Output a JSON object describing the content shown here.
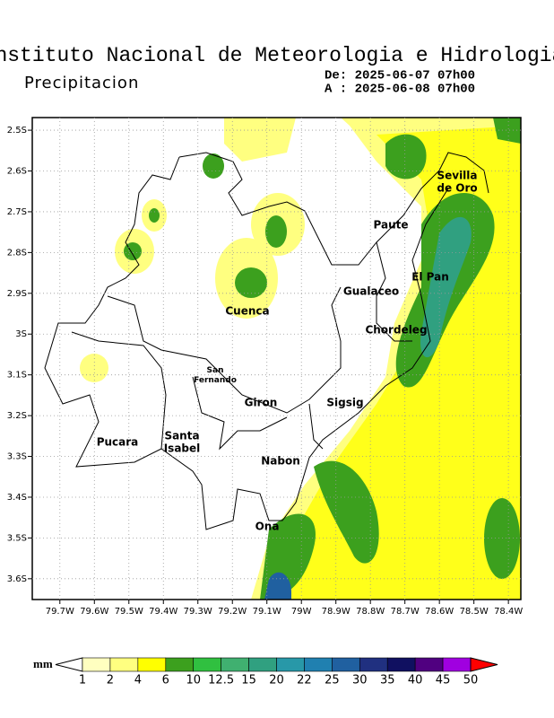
{
  "header": {
    "title": "Instituto Nacional de Meteorologia e Hidrologia",
    "subtitle": "Precipitacion",
    "from": "De: 2025-06-07 07h00",
    "to": "A : 2025-06-08 07h00"
  },
  "map": {
    "xlim": [
      -79.78,
      -78.364
    ],
    "ylim": [
      -3.651,
      -2.469
    ],
    "grid": true,
    "xticks": [
      {
        "value": -79.7,
        "label": "79.7W"
      },
      {
        "value": -79.6,
        "label": "79.6W"
      },
      {
        "value": -79.5,
        "label": "79.5W"
      },
      {
        "value": -79.4,
        "label": "79.4W"
      },
      {
        "value": -79.3,
        "label": "79.3W"
      },
      {
        "value": -79.2,
        "label": "79.2W"
      },
      {
        "value": -79.1,
        "label": "79.1W"
      },
      {
        "value": -79.0,
        "label": "79W"
      },
      {
        "value": -78.9,
        "label": "78.9W"
      },
      {
        "value": -78.8,
        "label": "78.8W"
      },
      {
        "value": -78.7,
        "label": "78.7W"
      },
      {
        "value": -78.6,
        "label": "78.6W"
      },
      {
        "value": -78.5,
        "label": "78.5W"
      },
      {
        "value": -78.4,
        "label": "78.4W"
      }
    ],
    "yticks": [
      {
        "value": -2.5,
        "label": "2.5S"
      },
      {
        "value": -2.6,
        "label": "2.6S"
      },
      {
        "value": -2.7,
        "label": "2.7S"
      },
      {
        "value": -2.8,
        "label": "2.8S"
      },
      {
        "value": -2.9,
        "label": "2.9S"
      },
      {
        "value": -3.0,
        "label": "3S"
      },
      {
        "value": -3.1,
        "label": "3.1S"
      },
      {
        "value": -3.2,
        "label": "3.2S"
      },
      {
        "value": -3.3,
        "label": "3.3S"
      },
      {
        "value": -3.4,
        "label": "3.4S"
      },
      {
        "value": -3.5,
        "label": "3.5S"
      },
      {
        "value": -3.6,
        "label": "3.6S"
      }
    ],
    "places": [
      [
        "Sevilla",
        "de Oro"
      ],
      [
        "Paute"
      ],
      [
        "El Pan"
      ],
      [
        "Gualaceo"
      ],
      [
        "Cuenca"
      ],
      [
        "Chordeleg"
      ],
      [
        "San",
        "Fernando"
      ],
      [
        "Giron"
      ],
      [
        "Sigsig"
      ],
      [
        "Pucara"
      ],
      [
        "Santa",
        "Isabel"
      ],
      [
        "Nabon"
      ],
      [
        "Ona"
      ]
    ]
  },
  "colorbar": {
    "unit": "mm",
    "levels": [
      1,
      2,
      4,
      6,
      10,
      12.5,
      15,
      20,
      22,
      25,
      30,
      35,
      40,
      45,
      50
    ],
    "colors": [
      "#ffffff",
      "#ffffc0",
      "#ffff80",
      "#ffff00",
      "#3ca01e",
      "#30c040",
      "#40b070",
      "#30a080",
      "#2898a8",
      "#2080b0",
      "#2060a0",
      "#203080",
      "#101060",
      "#500080",
      "#a000e0",
      "#ff0000"
    ]
  }
}
